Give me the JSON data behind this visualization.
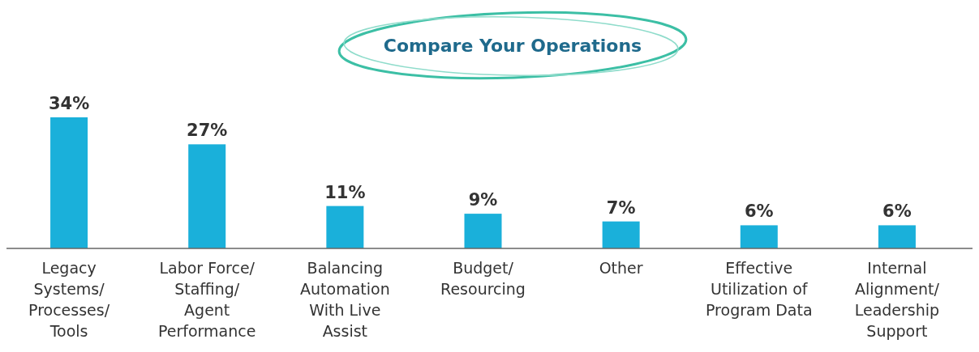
{
  "chart_data": {
    "type": "bar",
    "title": "Compare Your Operations",
    "categories": [
      "Legacy Systems/ Processes/ Tools",
      "Labor Force/ Staffing/ Agent Performance",
      "Balancing Automation With Live Assist",
      "Budget/ Resourcing",
      "Other",
      "Effective Utilization of Program Data",
      "Internal Alignment/ Leadership Support"
    ],
    "values": [
      34,
      27,
      11,
      9,
      7,
      6,
      6
    ],
    "value_labels": [
      "34%",
      "27%",
      "11%",
      "9%",
      "7%",
      "6%",
      "6%"
    ],
    "color": "#1ab0da"
  }
}
